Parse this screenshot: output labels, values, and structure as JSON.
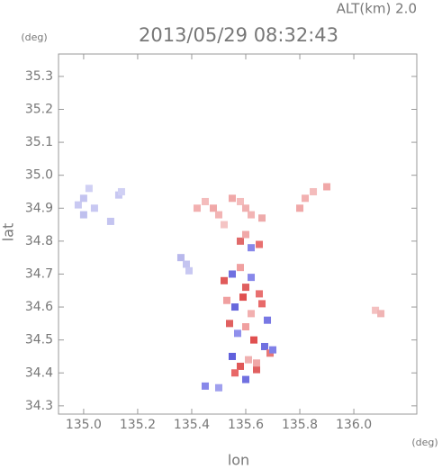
{
  "chart_data": {
    "type": "scatter",
    "title": "2013/05/29 08:32:43",
    "subtitle": "ALT(km) 2.0",
    "x_label": "lon",
    "y_label": "lat",
    "x_unit": "(deg)",
    "y_unit": "(deg)",
    "xlim": [
      134.907,
      136.233
    ],
    "ylim": [
      34.275,
      35.368
    ],
    "xticks": [
      {
        "value": 135.0,
        "label": "135.0"
      },
      135.2,
      135.4,
      135.6,
      135.8,
      {
        "value": 136.0,
        "label": "136.0"
      }
    ],
    "yticks": [
      34.3,
      34.4,
      34.5,
      34.6,
      34.7,
      34.8,
      34.9,
      {
        "value": 35.0,
        "label": "35.0"
      },
      35.1,
      35.2,
      35.3
    ],
    "x": [
      134.98,
      135.0,
      135.02,
      135.04,
      135.0,
      135.13,
      135.14,
      135.1,
      135.36,
      135.38,
      135.39,
      135.42,
      135.45,
      135.48,
      135.5,
      135.55,
      135.58,
      135.6,
      135.62,
      135.66,
      135.52,
      135.8,
      135.82,
      135.85,
      135.9,
      136.08,
      136.1,
      135.52,
      135.55,
      135.58,
      135.6,
      135.62,
      135.65,
      135.53,
      135.56,
      135.59,
      135.62,
      135.66,
      135.68,
      135.54,
      135.57,
      135.6,
      135.63,
      135.67,
      135.69,
      135.55,
      135.58,
      135.61,
      135.64,
      135.7,
      135.56,
      135.6,
      135.64,
      135.58,
      135.62,
      135.45,
      135.5,
      135.6,
      135.65
    ],
    "y": [
      34.91,
      34.93,
      34.96,
      34.9,
      34.88,
      34.94,
      34.95,
      34.86,
      34.75,
      34.73,
      34.71,
      34.9,
      34.92,
      34.9,
      34.88,
      34.93,
      34.92,
      34.9,
      34.88,
      34.87,
      34.85,
      34.9,
      34.93,
      34.95,
      34.965,
      34.59,
      34.58,
      34.68,
      34.7,
      34.72,
      34.66,
      34.69,
      34.64,
      34.62,
      34.6,
      34.63,
      34.58,
      34.61,
      34.56,
      34.55,
      34.52,
      34.54,
      34.5,
      34.48,
      34.46,
      34.45,
      34.42,
      34.44,
      34.41,
      34.47,
      34.4,
      34.38,
      34.43,
      34.8,
      34.78,
      34.36,
      34.355,
      34.82,
      34.79
    ],
    "colors": [
      "#c9c9f2",
      "#c4c4f0",
      "#d0d0f4",
      "#c8c8f2",
      "#bfc0ee",
      "#c8c8f2",
      "#d0d0f4",
      "#c4c4f0",
      "#b8b8ec",
      "#c4c4f0",
      "#c8c8f2",
      "#f2b0b0",
      "#f4bcbc",
      "#f0a8a8",
      "#f2b4b4",
      "#f0a8a8",
      "#f4bcbc",
      "#f0b0b0",
      "#f2b4b4",
      "#eeaaaa",
      "#f4c4c4",
      "#f0a8a8",
      "#f2b0b0",
      "#f4bcbc",
      "#f0a8a8",
      "#f4c0c0",
      "#f0b4b4",
      "#e05a5a",
      "#7070e0",
      "#f0a0a0",
      "#e06060",
      "#8888ea",
      "#e87070",
      "#f0a0a0",
      "#6868dc",
      "#e05050",
      "#f2b0b0",
      "#e86a6a",
      "#7878e4",
      "#e06060",
      "#9090ec",
      "#f0a0a0",
      "#e05050",
      "#7070e0",
      "#e87878",
      "#6060dc",
      "#e05858",
      "#f0b0b0",
      "#e06060",
      "#8080e8",
      "#e86868",
      "#7070e0",
      "#f0a8a8",
      "#e06a6a",
      "#8888ea",
      "#8888ea",
      "#a0a0ee",
      "#f0a8a8",
      "#e87070"
    ]
  }
}
